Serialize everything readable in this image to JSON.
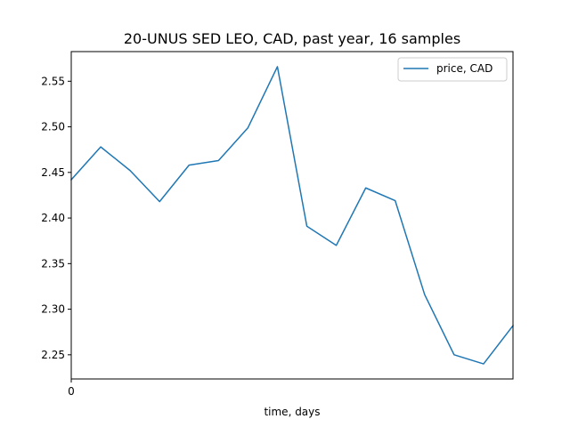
{
  "chart_data": {
    "type": "line",
    "title": "20-UNUS SED LEO, CAD, past year, 16 samples",
    "xlabel": "time, days",
    "ylabel": "",
    "xlim": [
      0,
      15
    ],
    "ylim": [
      2.2235,
      2.5825
    ],
    "x_ticks": [
      0
    ],
    "x_tick_labels": [
      "0"
    ],
    "y_ticks": [
      2.25,
      2.3,
      2.35,
      2.4,
      2.45,
      2.5,
      2.55
    ],
    "y_tick_labels": [
      "2.25",
      "2.30",
      "2.35",
      "2.40",
      "2.45",
      "2.50",
      "2.55"
    ],
    "grid": false,
    "legend_position": "top-right",
    "series": [
      {
        "name": "price, CAD",
        "color": "#1f77b4",
        "x": [
          0,
          1,
          2,
          3,
          4,
          5,
          6,
          7,
          8,
          9,
          10,
          11,
          12,
          13,
          14,
          15
        ],
        "values": [
          2.442,
          2.478,
          2.452,
          2.418,
          2.458,
          2.463,
          2.499,
          2.566,
          2.391,
          2.37,
          2.433,
          2.419,
          2.316,
          2.25,
          2.24,
          2.282
        ]
      }
    ]
  }
}
